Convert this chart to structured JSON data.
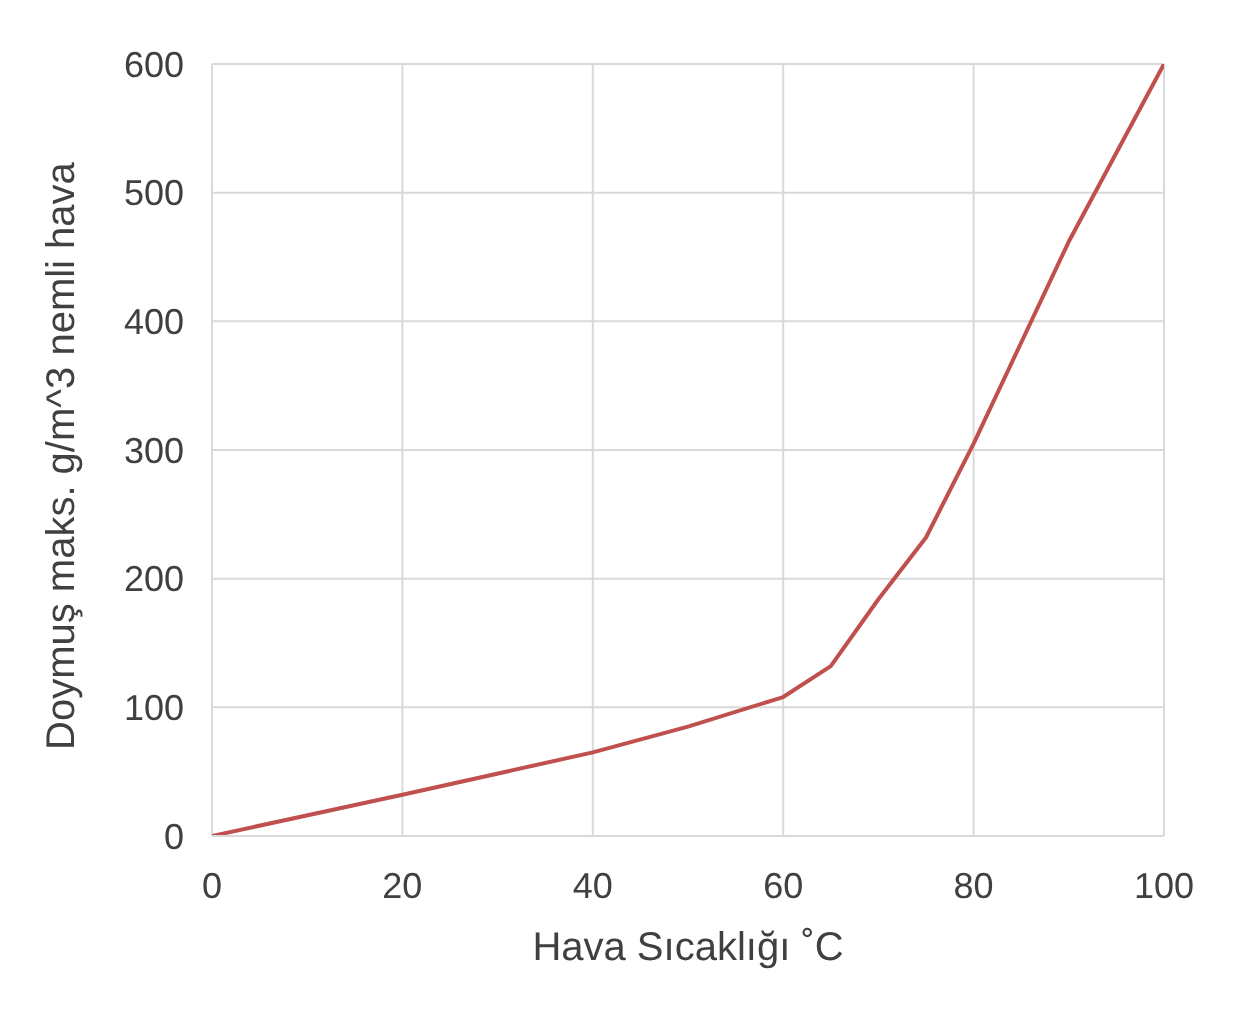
{
  "chart_data": {
    "type": "line",
    "xlabel": "Hava Sıcaklığı ˚C",
    "ylabel": "Doymuş maks. g/m^3 nemli hava",
    "x": [
      0,
      20,
      40,
      50,
      60,
      65,
      70,
      75,
      80,
      90,
      100
    ],
    "series": [
      {
        "color": "#c0504d",
        "values": [
          0,
          32,
          65,
          85,
          108,
          132,
          184,
          232,
          305,
          462,
          600
        ]
      }
    ],
    "xlim": [
      0,
      100
    ],
    "xticks": [
      0,
      20,
      40,
      60,
      80,
      100
    ],
    "ylim": [
      0,
      600
    ],
    "yticks": [
      0,
      100,
      200,
      300,
      400,
      500,
      600
    ],
    "grid": true,
    "marker": "none",
    "line_style": "solid"
  }
}
